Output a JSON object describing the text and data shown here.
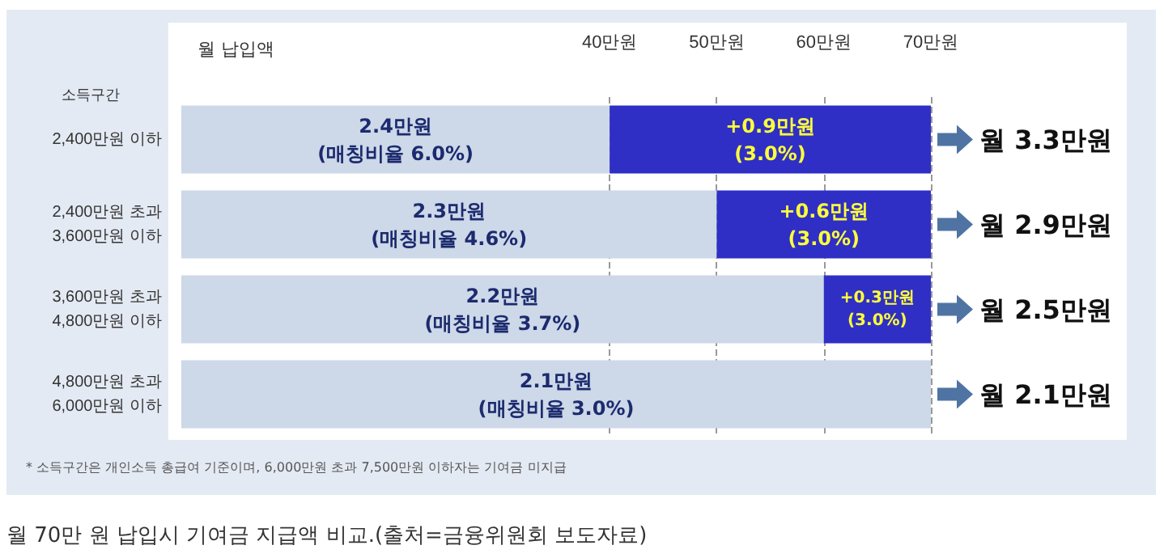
{
  "chart_data": {
    "type": "bar",
    "orientation": "horizontal",
    "stacked": true,
    "xlabel": "월 납입액",
    "ylabel": "소득구간",
    "categories": [
      "2,400만원 이하",
      "2,400만원 초과\n3,600만원 이하",
      "3,600만원 초과\n4,800만원 이하",
      "4,800만원 초과\n6,000만원 이하"
    ],
    "series": [
      {
        "color": "#cdd8e8",
        "values": [
          40,
          50,
          60,
          70
        ]
      },
      {
        "color": "#2f2fc6",
        "values": [
          30,
          20,
          10,
          0
        ]
      }
    ],
    "xlim": [
      0,
      70
    ],
    "xticks": [
      {
        "value": 40,
        "label": "40만원"
      },
      {
        "value": 50,
        "label": "50만원"
      },
      {
        "value": 60,
        "label": "60만원"
      },
      {
        "value": 70,
        "label": "70만원"
      }
    ],
    "grid": "x",
    "annotations": [
      {
        "text": "2.4만원\n(매칭비율 6.0%)",
        "x": 20,
        "y": "2,400만원 이하"
      },
      {
        "text": "2.3만원\n(매칭비율 4.6%)",
        "x": 25,
        "y": "2,400만원 초과\n3,600만원 이하"
      },
      {
        "text": "2.2만원\n(매칭비율 3.7%)",
        "x": 30,
        "y": "3,600만원 초과\n4,800만원 이하"
      },
      {
        "text": "2.1만원\n(매칭비율 3.0%)",
        "x": 35,
        "y": "4,800만원 초과\n6,000만원 이하"
      },
      {
        "text": "+0.9만원\n(3.0%)",
        "x": 55,
        "y": "2,400만원 이하"
      },
      {
        "text": "+0.6만원\n(3.0%)",
        "x": 60,
        "y": "2,400만원 초과\n3,600만원 이하"
      },
      {
        "text": "+0.3만원\n(3.0%)",
        "x": 65,
        "y": "3,600만원 초과\n4,800만원 이하"
      },
      {
        "text": "월 3.3만원",
        "x": 70,
        "y": "2,400만원 이하"
      },
      {
        "text": "월 2.9만원",
        "x": 70,
        "y": "2,400만원 초과\n3,600만원 이하"
      },
      {
        "text": "월 2.5만원",
        "x": 70,
        "y": "3,600만원 초과\n4,800만원 이하"
      },
      {
        "text": "월 2.1만원",
        "x": 70,
        "y": "4,800만원 초과\n6,000만원 이하"
      },
      "* 소득구간은 개인소득 총급여 기준이며, 6,000만원 초과 7,500만원 이하자는 기여금 미지급",
      "월 70만 원 납입시 기여금 지급액 비교.(출처=금융위원회 보도자료)"
    ]
  }
}
